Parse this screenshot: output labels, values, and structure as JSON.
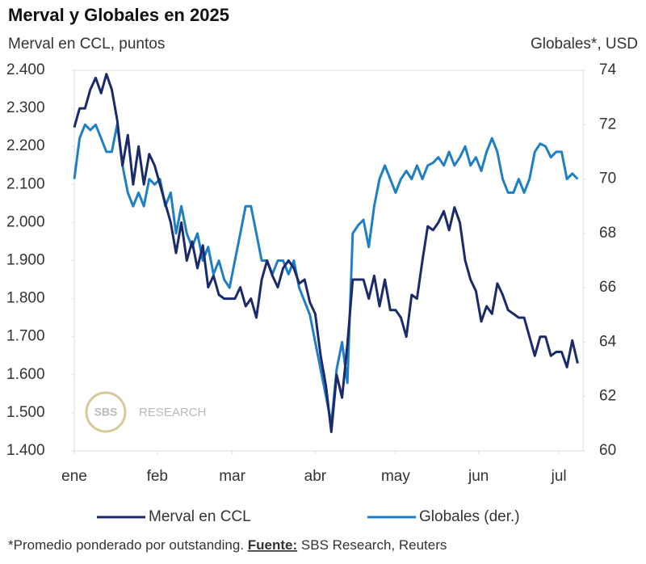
{
  "chart_data": {
    "type": "line",
    "title": "Merval y Globales en 2025",
    "y_label": "Merval en CCL, puntos",
    "y2_label": "Globales*, USD",
    "watermark": [
      "SBS",
      "RESEARCH"
    ],
    "note": "*Promedio ponderado por outstanding.",
    "source_label": "Fuente:",
    "source": "SBS Research, Reuters",
    "legend": "bottom",
    "grid": false,
    "x": [
      0,
      2,
      4,
      6,
      8,
      10,
      12,
      14,
      16,
      18,
      20,
      22,
      24,
      26,
      28,
      30,
      32,
      34,
      36,
      38,
      40,
      42,
      44,
      46,
      48,
      50,
      52,
      54,
      56,
      58,
      60,
      62,
      64,
      66,
      68,
      70,
      72,
      74,
      76,
      78,
      80,
      82,
      84,
      86,
      88,
      90,
      92,
      94,
      96,
      98,
      100,
      102,
      104,
      106,
      108,
      110,
      112,
      114,
      116,
      118,
      120,
      122,
      124,
      126,
      128,
      130,
      132,
      134,
      136,
      138,
      140,
      142,
      144,
      146,
      148,
      150,
      152,
      154,
      156,
      158,
      160,
      162,
      164,
      166,
      168,
      170,
      172,
      174,
      176,
      178,
      180,
      182,
      184,
      186,
      188
    ],
    "xlim": [
      0,
      190
    ],
    "xticks": [
      {
        "value": 0,
        "label": "ene"
      },
      {
        "value": 31,
        "label": "feb"
      },
      {
        "value": 59,
        "label": "mar"
      },
      {
        "value": 90,
        "label": "abr"
      },
      {
        "value": 120,
        "label": "may"
      },
      {
        "value": 151,
        "label": "jun"
      },
      {
        "value": 181,
        "label": "jul"
      }
    ],
    "ylim": [
      1400,
      2400
    ],
    "yticks": [
      {
        "value": 1400,
        "label": "1.400"
      },
      {
        "value": 1500,
        "label": "1.500"
      },
      {
        "value": 1600,
        "label": "1.600"
      },
      {
        "value": 1700,
        "label": "1.700"
      },
      {
        "value": 1800,
        "label": "1.800"
      },
      {
        "value": 1900,
        "label": "1.900"
      },
      {
        "value": 2000,
        "label": "2.000"
      },
      {
        "value": 2100,
        "label": "2.100"
      },
      {
        "value": 2200,
        "label": "2.200"
      },
      {
        "value": 2300,
        "label": "2.300"
      },
      {
        "value": 2400,
        "label": "2.400"
      }
    ],
    "y2lim": [
      60,
      74
    ],
    "y2ticks": [
      60,
      62,
      64,
      66,
      68,
      70,
      72,
      74
    ],
    "series": [
      {
        "name": "Merval en CCL",
        "color": "#1b2a6b",
        "values": [
          2250,
          2300,
          2300,
          2350,
          2380,
          2340,
          2390,
          2350,
          2270,
          2150,
          2230,
          2100,
          2200,
          2100,
          2180,
          2150,
          2100,
          2050,
          2000,
          1920,
          2000,
          1900,
          1950,
          1880,
          1940,
          1830,
          1860,
          1810,
          1800,
          1800,
          1800,
          1830,
          1780,
          1800,
          1750,
          1850,
          1900,
          1860,
          1830,
          1880,
          1900,
          1880,
          1840,
          1850,
          1790,
          1760,
          1650,
          1570,
          1450,
          1600,
          1540,
          1680,
          1850,
          1850,
          1850,
          1800,
          1860,
          1780,
          1850,
          1770,
          1770,
          1750,
          1700,
          1810,
          1800,
          1900,
          1990,
          1980,
          2000,
          2030,
          1980,
          2040,
          2000,
          1900,
          1850,
          1820,
          1740,
          1780,
          1760,
          1840,
          1810,
          1770,
          1760,
          1750,
          1750,
          1700,
          1650,
          1700,
          1700,
          1650,
          1660,
          1660,
          1620,
          1690,
          1630
        ]
      },
      {
        "name": "Globales (der.)",
        "color": "#1f7fc4",
        "axis": "y2",
        "values": [
          70,
          71.5,
          72,
          71.8,
          72,
          71.5,
          71,
          71,
          72,
          70.5,
          69.5,
          69,
          69.5,
          69,
          70,
          69.8,
          70,
          69,
          69.5,
          68,
          69,
          68,
          67.5,
          68,
          67,
          67.5,
          66.5,
          67,
          66.3,
          66,
          67,
          68,
          69,
          69,
          68,
          67,
          67,
          66.5,
          67,
          67,
          66.5,
          67,
          66,
          65.5,
          65,
          64,
          63,
          62,
          61,
          63,
          64,
          62.5,
          68,
          68.3,
          68.5,
          67.5,
          69,
          70,
          70.5,
          70,
          69.5,
          70,
          70.3,
          70,
          70.5,
          70,
          70.5,
          70.6,
          70.8,
          70.5,
          71,
          70.5,
          70.8,
          71.2,
          70.5,
          70.8,
          70.3,
          71,
          71.5,
          71,
          70,
          69.5,
          69.5,
          70,
          69.5,
          70,
          71,
          71.3,
          71.2,
          70.8,
          71,
          71,
          70,
          70.2,
          70
        ]
      }
    ]
  }
}
